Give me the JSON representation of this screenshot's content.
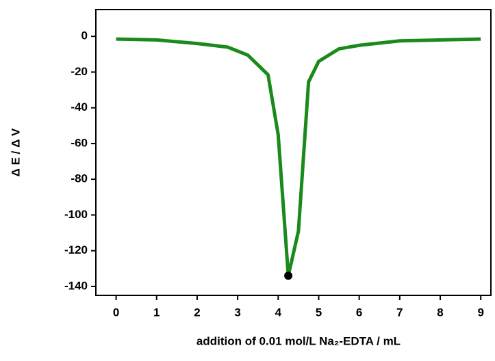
{
  "chart_data": {
    "type": "line",
    "xlabel": "addition of 0.01 mol/L Na₂-EDTA / mL",
    "ylabel": "Δ E / Δ V",
    "x": [
      0,
      1,
      2,
      2.75,
      3.25,
      3.75,
      4.0,
      4.25,
      4.5,
      4.75,
      5.0,
      5.5,
      6,
      7,
      8,
      9
    ],
    "values": [
      -1.5,
      -2,
      -4,
      -6,
      -10.5,
      -21.5,
      -55,
      -134,
      -109,
      -25.5,
      -14,
      -7,
      -5,
      -2.5,
      -2,
      -1.5
    ],
    "color": "#1a8a1a",
    "marker": {
      "x": 4.25,
      "y": -134,
      "color": "#000000"
    },
    "xlim": [
      -0.5,
      9.25
    ],
    "xticks": [
      0,
      1,
      2,
      3,
      4,
      5,
      6,
      7,
      8,
      9
    ],
    "ylim": [
      -145,
      15
    ],
    "yticks": [
      0,
      -20,
      -40,
      -60,
      -80,
      -100,
      -120,
      -140
    ],
    "grid": false
  }
}
